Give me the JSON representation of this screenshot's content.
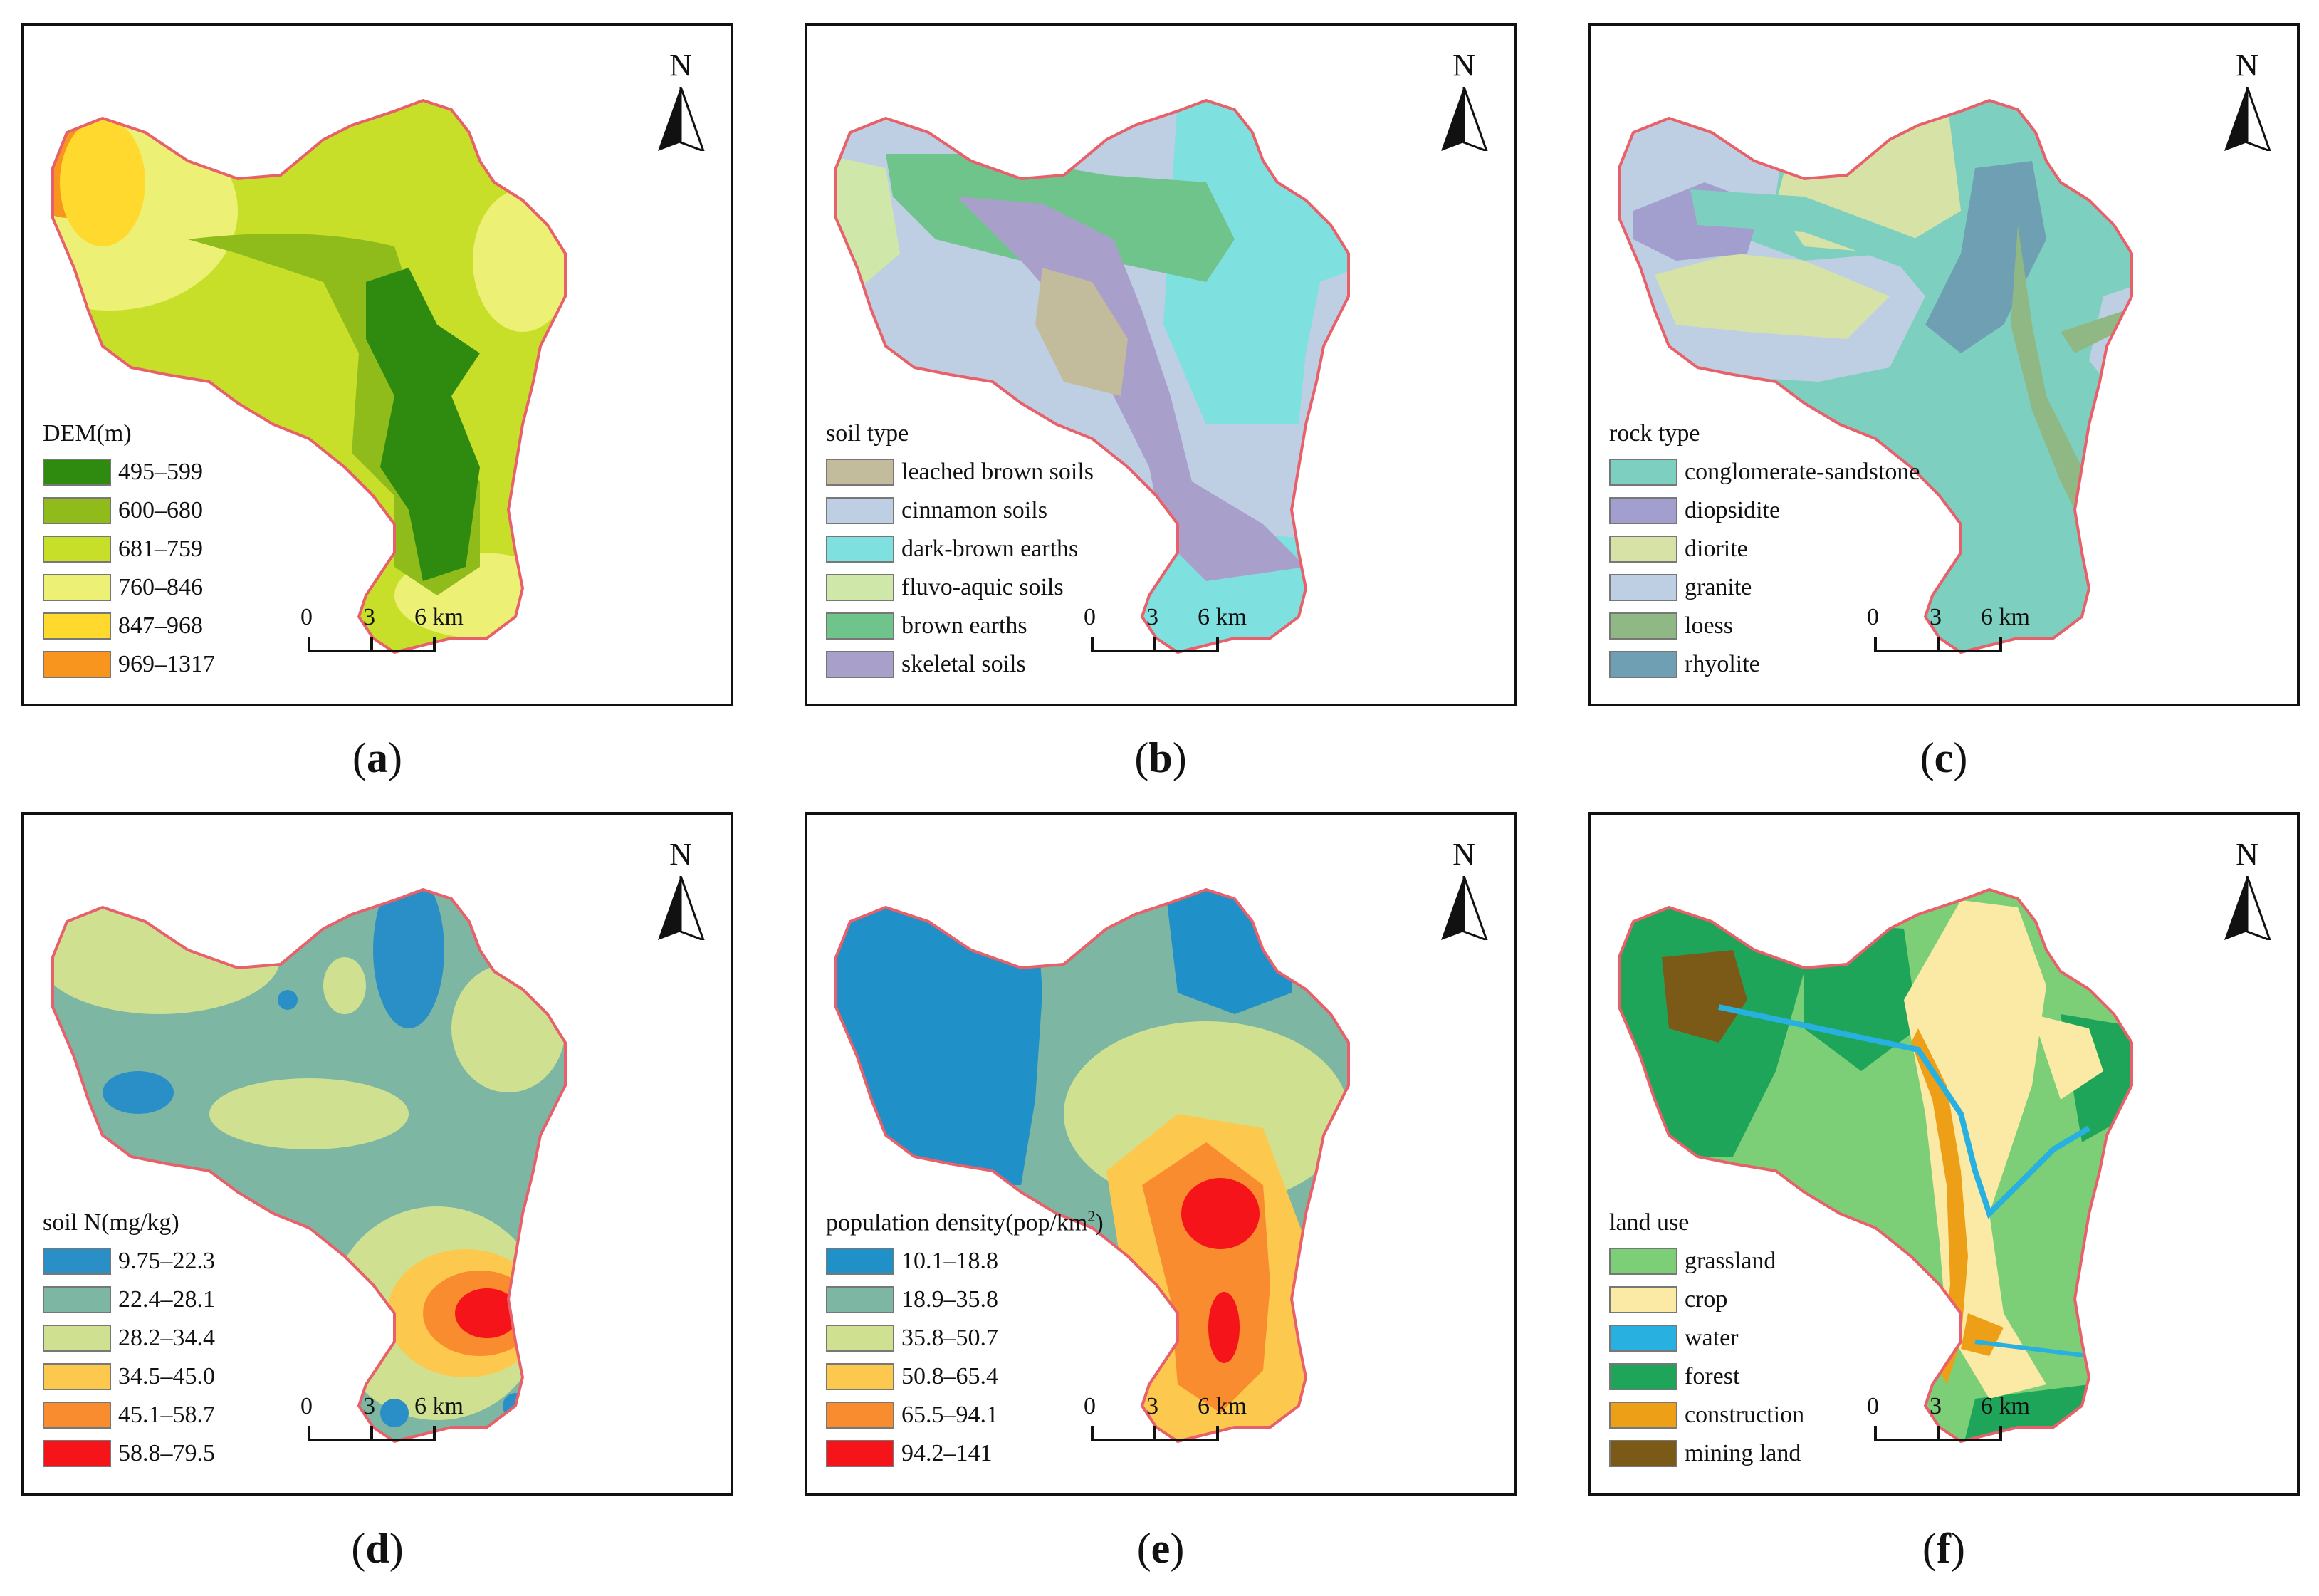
{
  "panels": [
    {
      "id": "a",
      "legend_title": "DEM(m)",
      "legend": [
        {
          "label": "495–599",
          "color": "#2e8b10"
        },
        {
          "label": "600–680",
          "color": "#8fbc1a"
        },
        {
          "label": "681–759",
          "color": "#c8df2a"
        },
        {
          "label": "760–846",
          "color": "#ecf075"
        },
        {
          "label": "847–968",
          "color": "#ffd92e"
        },
        {
          "label": "969–1317",
          "color": "#f7951e"
        }
      ],
      "caption_open": "(",
      "caption_letter": "a",
      "caption_close": ")"
    },
    {
      "id": "b",
      "legend_title": "soil type",
      "legend": [
        {
          "label": "leached brown soils",
          "color": "#c2bb9c"
        },
        {
          "label": "cinnamon soils",
          "color": "#bfcfe3"
        },
        {
          "label": "dark-brown earths",
          "color": "#7fe0e0"
        },
        {
          "label": "fluvo-aquic soils",
          "color": "#cfe7a9"
        },
        {
          "label": "brown earths",
          "color": "#6ec48b"
        },
        {
          "label": "skeletal soils",
          "color": "#a8a0cb"
        }
      ],
      "caption_open": "(",
      "caption_letter": "b",
      "caption_close": ")"
    },
    {
      "id": "c",
      "legend_title": "rock type",
      "legend": [
        {
          "label": "conglomerate-sandstone",
          "color": "#7dcfc0"
        },
        {
          "label": "diopsidite",
          "color": "#a29ecd"
        },
        {
          "label": "diorite",
          "color": "#d7e3a6"
        },
        {
          "label": "granite",
          "color": "#bfcfe3"
        },
        {
          "label": "loess",
          "color": "#8fb884"
        },
        {
          "label": "rhyolite",
          "color": "#6f9fb3"
        }
      ],
      "caption_open": "(",
      "caption_letter": "c",
      "caption_close": ")"
    },
    {
      "id": "d",
      "legend_title": "soil N(mg/kg)",
      "legend": [
        {
          "label": "9.75–22.3",
          "color": "#2a8fc6"
        },
        {
          "label": "22.4–28.1",
          "color": "#7db6a2"
        },
        {
          "label": "28.2–34.4",
          "color": "#cfe191"
        },
        {
          "label": "34.5–45.0",
          "color": "#fdc84e"
        },
        {
          "label": "45.1–58.7",
          "color": "#f98c2f"
        },
        {
          "label": "58.8–79.5",
          "color": "#f4141a"
        }
      ],
      "caption_open": "(",
      "caption_letter": "d",
      "caption_close": ")"
    },
    {
      "id": "e",
      "legend_title": "population density(pop/km",
      "legend_title_sup": "2",
      "legend_title_end": ")",
      "legend": [
        {
          "label": "10.1–18.8",
          "color": "#1f90c8"
        },
        {
          "label": "18.9–35.8",
          "color": "#7db6a2"
        },
        {
          "label": "35.8–50.7",
          "color": "#cfe191"
        },
        {
          "label": "50.8–65.4",
          "color": "#fdc84e"
        },
        {
          "label": "65.5–94.1",
          "color": "#f98c2f"
        },
        {
          "label": "94.2–141",
          "color": "#f4141a"
        }
      ],
      "caption_open": "(",
      "caption_letter": "e",
      "caption_close": ")"
    },
    {
      "id": "f",
      "legend_title": "land use",
      "legend": [
        {
          "label": "grassland",
          "color": "#7ccf77"
        },
        {
          "label": "crop",
          "color": "#fbe9a6"
        },
        {
          "label": "water",
          "color": "#27b0e0"
        },
        {
          "label": "forest",
          "color": "#1fa55a"
        },
        {
          "label": "construction",
          "color": "#ec9f17"
        },
        {
          "label": "mining land",
          "color": "#7a5a16"
        }
      ],
      "caption_open": "(",
      "caption_letter": "f",
      "caption_close": ")"
    }
  ],
  "north_label": "N",
  "scale_labels": [
    "0",
    "3",
    "6 km"
  ],
  "colors": {
    "boundary": "#e8606a",
    "frame": "#111111"
  }
}
